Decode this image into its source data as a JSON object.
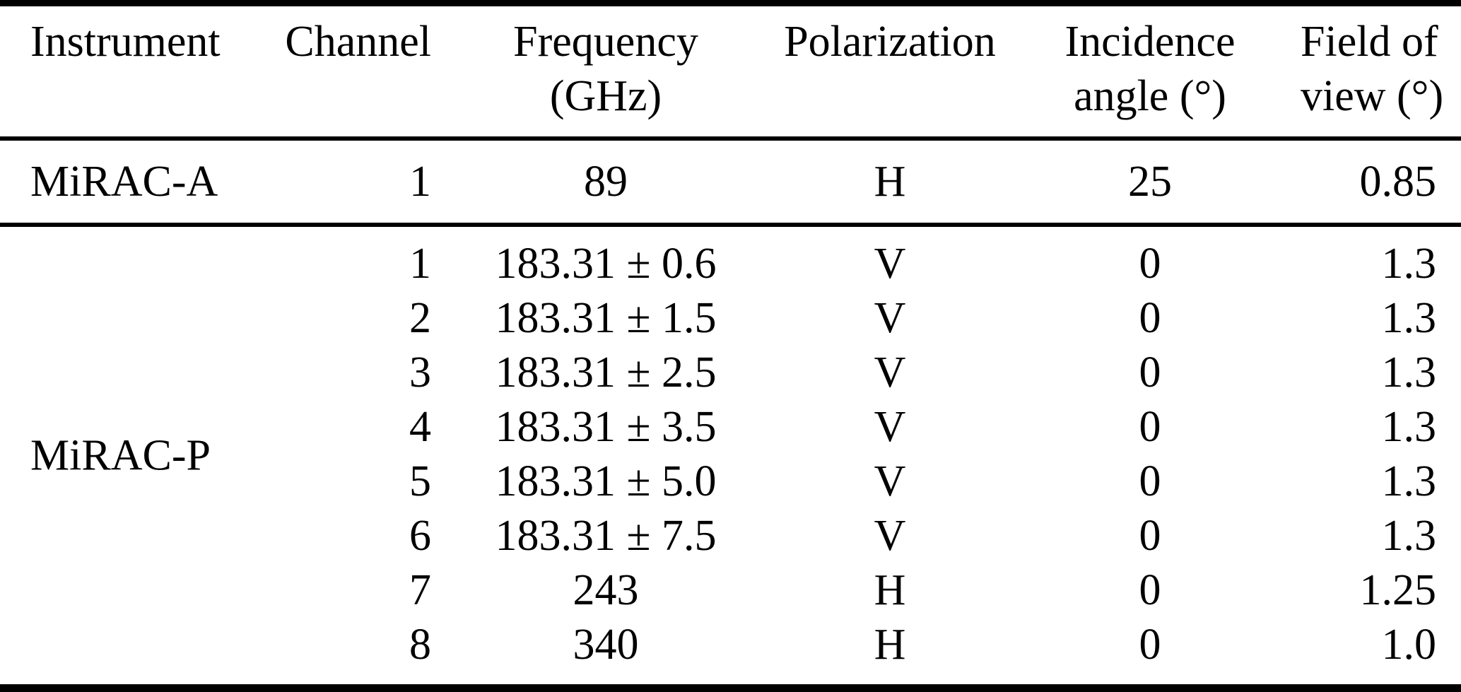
{
  "colors": {
    "text": "#000000",
    "rules": "#000000",
    "background": "#ffffff"
  },
  "table": {
    "columns": [
      {
        "label": "Instrument",
        "label2": ""
      },
      {
        "label": "Channel",
        "label2": ""
      },
      {
        "label": "Frequency",
        "label2": "(GHz)"
      },
      {
        "label": "Polarization",
        "label2": ""
      },
      {
        "label": "Incidence",
        "label2": "angle (°)"
      },
      {
        "label": "Field of",
        "label2": "view (°)"
      }
    ],
    "groups": [
      {
        "instrument": "MiRAC-A",
        "rows": [
          {
            "channel": "1",
            "frequency": "89",
            "polarization": "H",
            "incidence_angle": "25",
            "field_of_view": "0.85"
          }
        ]
      },
      {
        "instrument": "MiRAC-P",
        "rows": [
          {
            "channel": "1",
            "frequency": "183.31 ± 0.6",
            "polarization": "V",
            "incidence_angle": "0",
            "field_of_view": "1.3"
          },
          {
            "channel": "2",
            "frequency": "183.31 ± 1.5",
            "polarization": "V",
            "incidence_angle": "0",
            "field_of_view": "1.3"
          },
          {
            "channel": "3",
            "frequency": "183.31 ± 2.5",
            "polarization": "V",
            "incidence_angle": "0",
            "field_of_view": "1.3"
          },
          {
            "channel": "4",
            "frequency": "183.31 ± 3.5",
            "polarization": "V",
            "incidence_angle": "0",
            "field_of_view": "1.3"
          },
          {
            "channel": "5",
            "frequency": "183.31 ± 5.0",
            "polarization": "V",
            "incidence_angle": "0",
            "field_of_view": "1.3"
          },
          {
            "channel": "6",
            "frequency": "183.31 ± 7.5",
            "polarization": "V",
            "incidence_angle": "0",
            "field_of_view": "1.3"
          },
          {
            "channel": "7",
            "frequency": "243",
            "polarization": "H",
            "incidence_angle": "0",
            "field_of_view": "1.25"
          },
          {
            "channel": "8",
            "frequency": "340",
            "polarization": "H",
            "incidence_angle": "0",
            "field_of_view": "1.0"
          }
        ]
      }
    ]
  }
}
